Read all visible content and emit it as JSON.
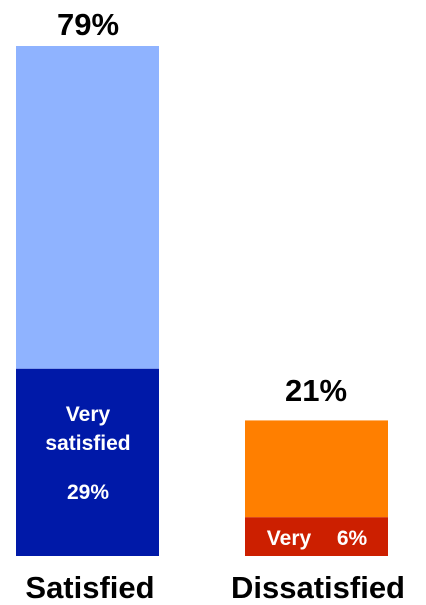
{
  "chart_data": {
    "type": "bar",
    "stacked": true,
    "categories": [
      "Satisfied",
      "Dissatisfied"
    ],
    "series": [
      {
        "name": "Very",
        "values": [
          29,
          6
        ],
        "colors": [
          "#0019a8",
          "#cc1f00"
        ]
      },
      {
        "name": "",
        "values": [
          50,
          15
        ],
        "colors": [
          "#8fb3ff",
          "#ff7f00"
        ]
      }
    ],
    "totals": [
      79,
      21
    ],
    "total_labels": [
      "79%",
      "21%"
    ],
    "segment_labels": {
      "satisfied_very_line1": "Very",
      "satisfied_very_line2": "satisfied",
      "satisfied_very_value": "29%",
      "dissatisfied_very_name": "Very",
      "dissatisfied_very_value": "6%"
    },
    "ylim": [
      0,
      79
    ],
    "grid": false,
    "legend": "none"
  }
}
